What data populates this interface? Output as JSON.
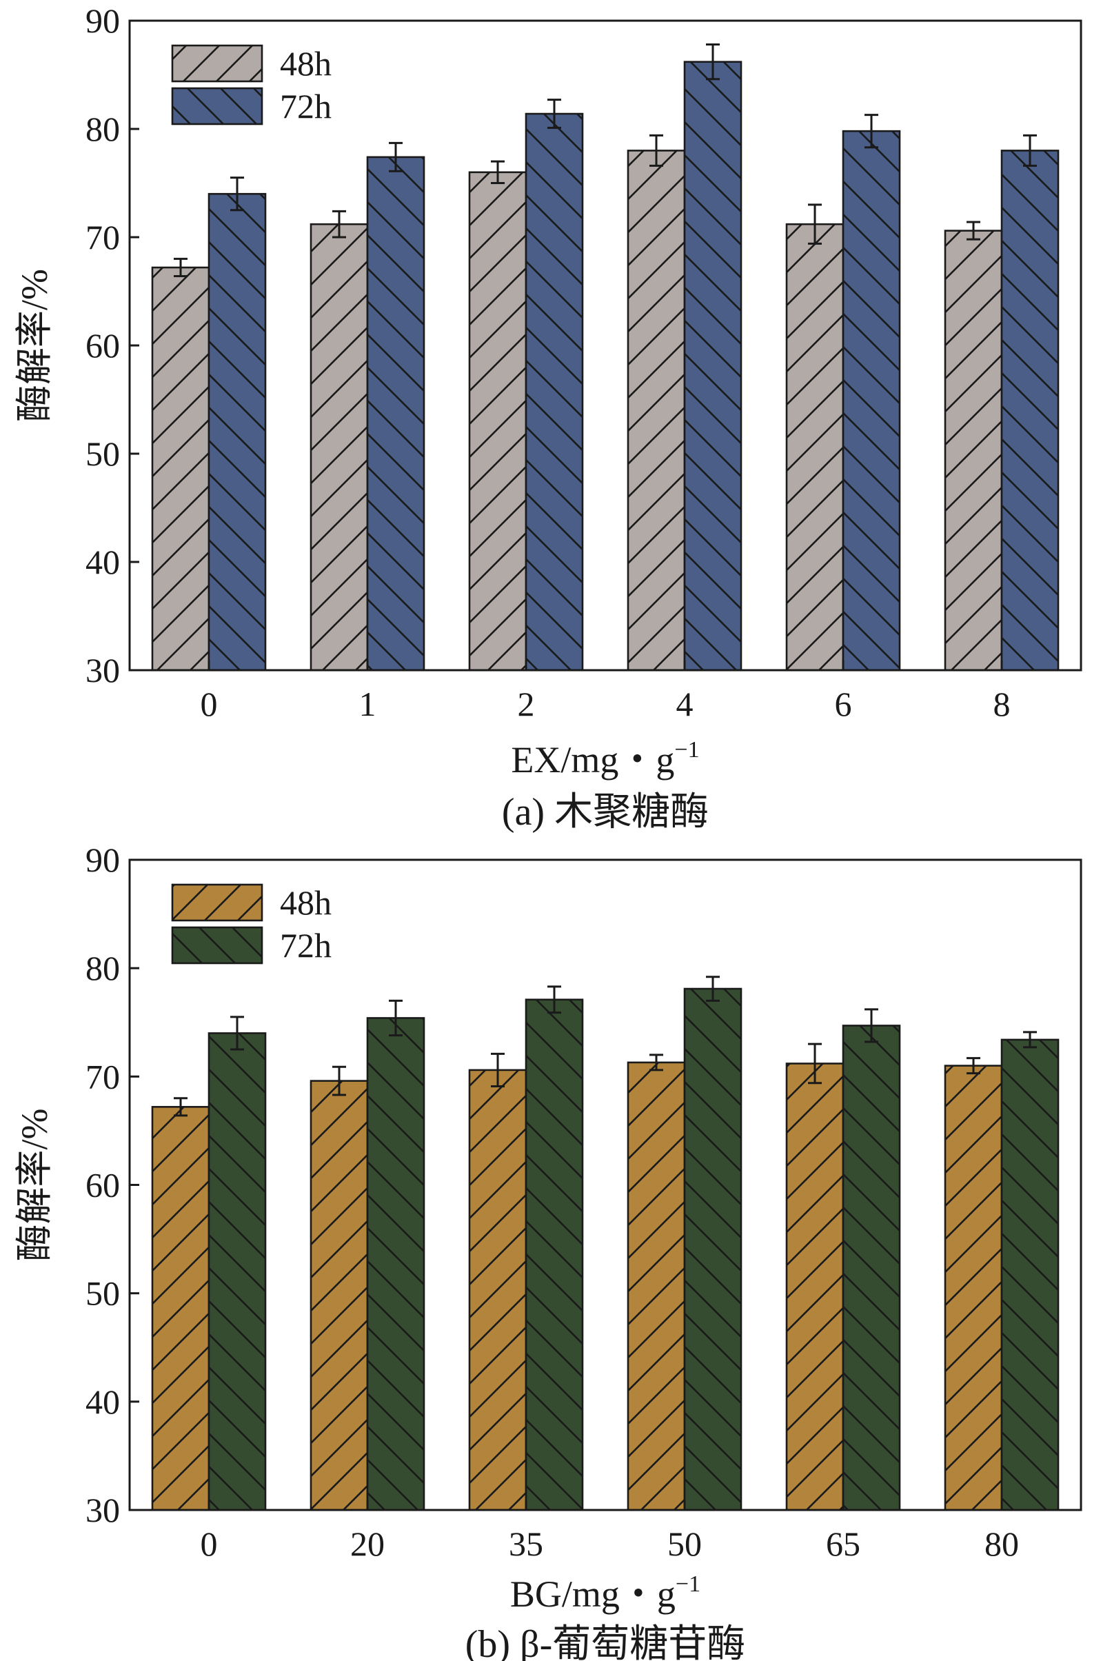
{
  "chart_data": [
    {
      "type": "bar",
      "caption": "(a) 木聚糖酶",
      "xlabel": "EX/mg・g",
      "xlabel_sup": "−1",
      "ylabel": "酶解率/%",
      "ylim": [
        30,
        90
      ],
      "yticks": [
        30,
        40,
        50,
        60,
        70,
        80,
        90
      ],
      "categories": [
        "0",
        "1",
        "2",
        "4",
        "6",
        "8"
      ],
      "legend_position": "top-left",
      "grid": false,
      "series": [
        {
          "name": "48h",
          "values": [
            67.2,
            71.2,
            76.0,
            78.0,
            71.2,
            70.6
          ],
          "errors": [
            0.8,
            1.2,
            1.0,
            1.4,
            1.8,
            0.8
          ],
          "color": "#b2aaa7",
          "hatch": "forward"
        },
        {
          "name": "72h",
          "values": [
            74.0,
            77.4,
            81.4,
            86.2,
            79.8,
            78.0
          ],
          "errors": [
            1.5,
            1.3,
            1.3,
            1.6,
            1.5,
            1.4
          ],
          "color": "#4a5e87",
          "hatch": "back"
        }
      ]
    },
    {
      "type": "bar",
      "caption": "(b) β-葡萄糖苷酶",
      "xlabel": "BG/mg・g",
      "xlabel_sup": "−1",
      "ylabel": "酶解率/%",
      "ylim": [
        30,
        90
      ],
      "yticks": [
        30,
        40,
        50,
        60,
        70,
        80,
        90
      ],
      "categories": [
        "0",
        "20",
        "35",
        "50",
        "65",
        "80"
      ],
      "legend_position": "top-left",
      "grid": false,
      "series": [
        {
          "name": "48h",
          "values": [
            67.2,
            69.6,
            70.6,
            71.3,
            71.2,
            71.0
          ],
          "errors": [
            0.8,
            1.3,
            1.5,
            0.7,
            1.8,
            0.7
          ],
          "color": "#b2843c",
          "hatch": "forward"
        },
        {
          "name": "72h",
          "values": [
            74.0,
            75.4,
            77.1,
            78.1,
            74.7,
            73.4
          ],
          "errors": [
            1.5,
            1.6,
            1.2,
            1.1,
            1.5,
            0.7
          ],
          "color": "#354c31",
          "hatch": "back"
        }
      ]
    }
  ]
}
